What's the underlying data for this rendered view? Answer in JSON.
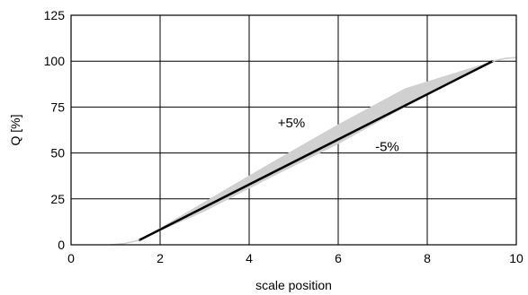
{
  "chart_data": {
    "type": "line",
    "title": "",
    "xlabel": "scale position",
    "ylabel": "Q [%]",
    "xlim": [
      0,
      10
    ],
    "ylim": [
      0,
      125
    ],
    "x_ticks": [
      0,
      2,
      4,
      6,
      8,
      10
    ],
    "y_ticks": [
      0,
      25,
      50,
      75,
      100,
      125
    ],
    "x_tick_labels": [
      "0",
      "2",
      "4",
      "6",
      "8",
      "10"
    ],
    "y_tick_labels": [
      "0",
      "25",
      "50",
      "75",
      "100",
      "125"
    ],
    "grid": true,
    "series": [
      {
        "role": "main",
        "color": "#000000",
        "x": [
          1.53,
          9.47
        ],
        "y": [
          2.5,
          100
        ]
      },
      {
        "role": "extension-light",
        "color": "#cccccc",
        "x": [
          0.9,
          1.2,
          1.53
        ],
        "y": [
          0,
          0.7,
          2.5
        ]
      },
      {
        "role": "extension-light",
        "color": "#cccccc",
        "x": [
          9.47,
          9.75,
          10.0
        ],
        "y": [
          100,
          101.5,
          102
        ]
      }
    ],
    "tolerance_band": {
      "color": "#d0d0d0",
      "upper_label": "+5%",
      "lower_label": "-5%",
      "upper": {
        "x": [
          1.53,
          3.0,
          4.5,
          6.0,
          7.5,
          9.47
        ],
        "y": [
          2.5,
          23.5,
          44.8,
          65.6,
          85.2,
          100
        ]
      },
      "lower": {
        "x": [
          1.53,
          3.0,
          4.5,
          6.0,
          7.5,
          9.47
        ],
        "y": [
          2.5,
          18.2,
          36.8,
          54.8,
          75.0,
          100
        ]
      }
    },
    "annotations": [
      {
        "text": "+5%",
        "x": 4.95,
        "y": 64
      },
      {
        "text": "-5%",
        "x": 7.1,
        "y": 51
      }
    ]
  }
}
